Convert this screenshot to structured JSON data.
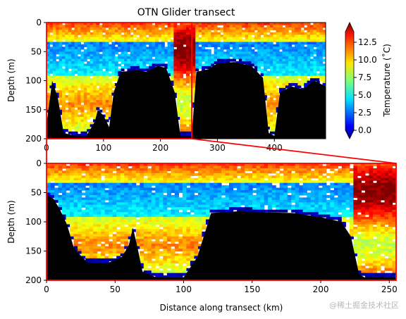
{
  "chart_data": [
    {
      "type": "heatmap",
      "panel": "overview",
      "title": "OTN Glider transect",
      "xlabel": "",
      "ylabel": "Depth (m)",
      "xlim": [
        0,
        490
      ],
      "ylim": [
        200,
        0
      ],
      "xticks": [
        0,
        100,
        200,
        300,
        400
      ],
      "yticks": [
        0,
        50,
        100,
        150,
        200
      ],
      "colorbar": {
        "label": "Temperature (˚C)",
        "range": [
          0,
          14
        ],
        "ticks": [
          "0.0",
          "2.5",
          "5.0",
          "7.5",
          "10.0",
          "12.5"
        ],
        "colormap": "jet"
      },
      "seafloor_depth_profile": [
        {
          "x": 0,
          "depth": 175
        },
        {
          "x": 10,
          "depth": 100
        },
        {
          "x": 20,
          "depth": 130
        },
        {
          "x": 30,
          "depth": 190
        },
        {
          "x": 50,
          "depth": 195
        },
        {
          "x": 70,
          "depth": 195
        },
        {
          "x": 85,
          "depth": 170
        },
        {
          "x": 90,
          "depth": 150
        },
        {
          "x": 100,
          "depth": 160
        },
        {
          "x": 110,
          "depth": 180
        },
        {
          "x": 118,
          "depth": 120
        },
        {
          "x": 130,
          "depth": 85
        },
        {
          "x": 160,
          "depth": 82
        },
        {
          "x": 175,
          "depth": 85
        },
        {
          "x": 195,
          "depth": 75
        },
        {
          "x": 210,
          "depth": 78
        },
        {
          "x": 225,
          "depth": 120
        },
        {
          "x": 235,
          "depth": 195
        },
        {
          "x": 255,
          "depth": 195
        },
        {
          "x": 263,
          "depth": 85
        },
        {
          "x": 285,
          "depth": 80
        },
        {
          "x": 300,
          "depth": 70
        },
        {
          "x": 330,
          "depth": 68
        },
        {
          "x": 360,
          "depth": 75
        },
        {
          "x": 380,
          "depth": 95
        },
        {
          "x": 390,
          "depth": 190
        },
        {
          "x": 400,
          "depth": 195
        },
        {
          "x": 410,
          "depth": 120
        },
        {
          "x": 430,
          "depth": 110
        },
        {
          "x": 450,
          "depth": 115
        },
        {
          "x": 470,
          "depth": 100
        },
        {
          "x": 490,
          "depth": 110
        }
      ]
    },
    {
      "type": "heatmap",
      "panel": "zoom",
      "title": "",
      "xlabel": "Distance along transect (km)",
      "ylabel": "Depth (m)",
      "xlim": [
        0,
        255
      ],
      "ylim": [
        200,
        0
      ],
      "xticks": [
        0,
        50,
        100,
        150,
        200,
        250
      ],
      "yticks": [
        0,
        50,
        100,
        150,
        200
      ],
      "zoom_window": {
        "x": [
          0,
          255
        ],
        "depth": [
          0,
          200
        ]
      },
      "seafloor_depth_profile": [
        {
          "x": 0,
          "depth": 55
        },
        {
          "x": 5,
          "depth": 60
        },
        {
          "x": 10,
          "depth": 80
        },
        {
          "x": 15,
          "depth": 105
        },
        {
          "x": 20,
          "depth": 145
        },
        {
          "x": 30,
          "depth": 170
        },
        {
          "x": 45,
          "depth": 170
        },
        {
          "x": 55,
          "depth": 160
        },
        {
          "x": 60,
          "depth": 140
        },
        {
          "x": 63,
          "depth": 110
        },
        {
          "x": 66,
          "depth": 140
        },
        {
          "x": 70,
          "depth": 185
        },
        {
          "x": 80,
          "depth": 195
        },
        {
          "x": 100,
          "depth": 195
        },
        {
          "x": 110,
          "depth": 160
        },
        {
          "x": 120,
          "depth": 85
        },
        {
          "x": 140,
          "depth": 82
        },
        {
          "x": 160,
          "depth": 84
        },
        {
          "x": 180,
          "depth": 85
        },
        {
          "x": 200,
          "depth": 92
        },
        {
          "x": 215,
          "depth": 100
        },
        {
          "x": 222,
          "depth": 125
        },
        {
          "x": 228,
          "depth": 190
        },
        {
          "x": 232,
          "depth": 195
        },
        {
          "x": 255,
          "depth": 195
        }
      ]
    }
  ],
  "watermark": "@稀土掘金技术社区"
}
